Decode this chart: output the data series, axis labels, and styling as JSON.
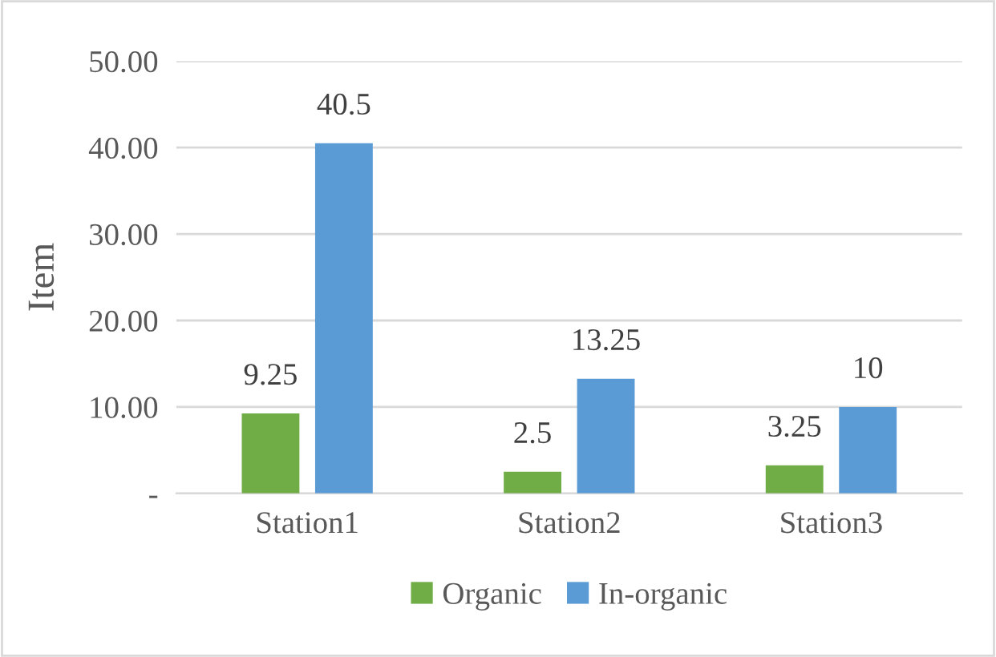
{
  "chart_data": {
    "type": "bar",
    "ylabel": "Item",
    "categories": [
      "Station1",
      "Station2",
      "Station3"
    ],
    "series": [
      {
        "name": "Organic",
        "color": "#70ad47",
        "values": [
          9.25,
          2.5,
          3.25
        ]
      },
      {
        "name": "In-organic",
        "color": "#5b9bd5",
        "values": [
          40.5,
          13.25,
          10
        ]
      }
    ],
    "ylim": [
      0,
      50
    ],
    "yticks": [
      {
        "value": 0,
        "label": "-"
      },
      {
        "value": 10,
        "label": "10.00"
      },
      {
        "value": 20,
        "label": "20.00"
      },
      {
        "value": 30,
        "label": "30.00"
      },
      {
        "value": 40,
        "label": "40.00"
      },
      {
        "value": 50,
        "label": "50.00"
      }
    ],
    "grid": "y",
    "legend": "bottom",
    "data_labels": true
  }
}
